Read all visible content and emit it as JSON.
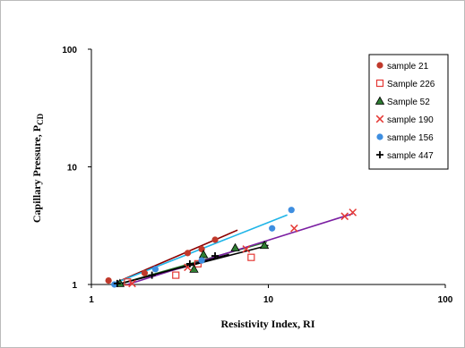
{
  "chart_data": {
    "type": "scatter",
    "xlabel": "Resistivity Index, RI",
    "ylabel_main": "Capillary Pressure, P",
    "ylabel_sub": "CD",
    "xscale": "log",
    "yscale": "log",
    "xlim": [
      1,
      100
    ],
    "ylim": [
      1,
      100
    ],
    "xticks": [
      "1",
      "10",
      "100"
    ],
    "yticks": [
      "1",
      "10",
      "100"
    ],
    "grid": false,
    "legend_position": "top-right",
    "series": [
      {
        "name": "sample 21",
        "marker": "circle",
        "color": "#c0392b",
        "line_color": "#8b0000",
        "points": [
          [
            1.25,
            1.08
          ],
          [
            2.0,
            1.25
          ],
          [
            3.5,
            1.85
          ],
          [
            4.2,
            2.0
          ],
          [
            5.0,
            2.4
          ]
        ],
        "trend": [
          [
            1.3,
            1.0
          ],
          [
            6.7,
            2.9
          ]
        ]
      },
      {
        "name": "Sample 226",
        "marker": "square-open",
        "color": "#e53935",
        "line_color": "#000000",
        "points": [
          [
            1.6,
            1.05
          ],
          [
            3.0,
            1.2
          ],
          [
            4.0,
            1.5
          ],
          [
            8.0,
            1.7
          ]
        ],
        "trend": [
          [
            1.4,
            1.0
          ],
          [
            10.0,
            2.15
          ]
        ]
      },
      {
        "name": "Sample 52",
        "marker": "triangle",
        "color": "#2e7d32",
        "line_color": "#2e7d32",
        "points": [
          [
            1.45,
            1.02
          ],
          [
            3.8,
            1.35
          ],
          [
            4.3,
            1.8
          ],
          [
            6.5,
            2.05
          ],
          [
            9.5,
            2.15
          ]
        ],
        "trend": [
          [
            1.4,
            1.0
          ],
          [
            9.8,
            2.3
          ]
        ]
      },
      {
        "name": "sample 190",
        "marker": "x",
        "color": "#e53935",
        "line_color": "#7b1fa2",
        "points": [
          [
            1.7,
            1.02
          ],
          [
            3.5,
            1.4
          ],
          [
            7.5,
            2.0
          ],
          [
            14.0,
            3.0
          ],
          [
            27.0,
            3.8
          ],
          [
            30.0,
            4.1
          ]
        ],
        "trend": [
          [
            1.6,
            1.0
          ],
          [
            30.0,
            4.0
          ]
        ]
      },
      {
        "name": "sample 156",
        "marker": "circle",
        "color": "#3e8ee0",
        "line_color": "#1fb5e8",
        "points": [
          [
            1.35,
            1.0
          ],
          [
            2.3,
            1.35
          ],
          [
            4.2,
            1.6
          ],
          [
            10.5,
            3.0
          ],
          [
            13.5,
            4.3
          ]
        ],
        "trend": [
          [
            1.3,
            1.0
          ],
          [
            12.8,
            3.9
          ]
        ]
      },
      {
        "name": "sample 447",
        "marker": "plus",
        "color": "#000000",
        "line_color": "#000000",
        "points": [
          [
            1.4,
            1.02
          ],
          [
            2.2,
            1.2
          ],
          [
            3.6,
            1.5
          ],
          [
            5.0,
            1.75
          ]
        ],
        "trend": [
          [
            1.4,
            1.0
          ],
          [
            6.0,
            1.8
          ]
        ]
      }
    ]
  }
}
